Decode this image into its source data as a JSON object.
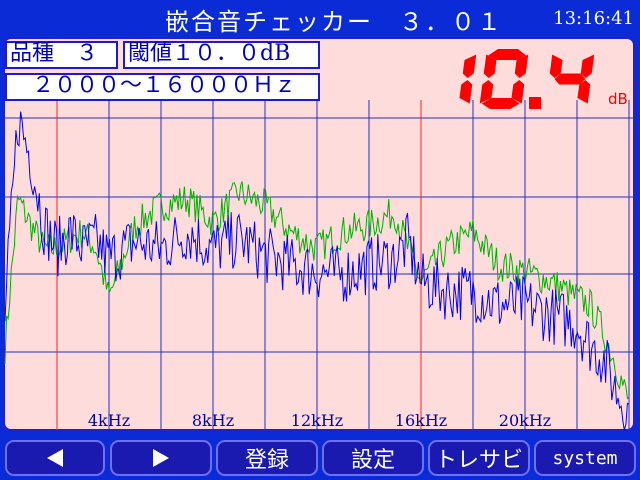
{
  "app": {
    "title": "嵌合音チェッカー　３．０１",
    "clock": "13:16:41"
  },
  "info": {
    "product": "品種　３",
    "threshold": "閾値１０．０dB",
    "band": "　２０００～１６０００Ｈｚ"
  },
  "result": {
    "value": "10.4",
    "unit": "dB",
    "color": "#ff0000"
  },
  "buttons": {
    "prev_icon": "triangle-left-icon",
    "next_icon": "triangle-right-icon",
    "register": "登録",
    "settings": "設定",
    "trace": "トレサビ",
    "system": "system"
  },
  "chart_data": {
    "type": "line",
    "x_tick_labels": [
      "4kHz",
      "8kHz",
      "12kHz",
      "16kHz",
      "20kHz"
    ],
    "x_range_khz": [
      0,
      24
    ],
    "threshold_band_khz": [
      2,
      16
    ],
    "grid": true,
    "series": [
      {
        "color": "#0000ff",
        "x_khz": [
          0,
          0.5,
          1,
          1.5,
          2,
          2.5,
          3,
          3.5,
          4,
          5,
          6,
          7,
          8,
          9,
          10,
          11,
          12,
          13,
          14,
          15,
          15.5,
          16,
          17,
          18,
          19,
          20,
          21,
          22,
          22.5,
          23,
          23.5,
          24
        ],
        "level": [
          0.35,
          0.95,
          0.82,
          0.62,
          0.55,
          0.6,
          0.55,
          0.57,
          0.52,
          0.57,
          0.55,
          0.6,
          0.55,
          0.58,
          0.53,
          0.5,
          0.48,
          0.47,
          0.5,
          0.52,
          0.57,
          0.45,
          0.42,
          0.42,
          0.38,
          0.38,
          0.35,
          0.32,
          0.26,
          0.22,
          0.12,
          0.05
        ]
      },
      {
        "color": "#00b000",
        "x_khz": [
          0,
          0.5,
          1,
          1.5,
          2,
          2.5,
          3,
          3.5,
          4,
          5,
          6,
          7,
          8,
          9,
          10,
          11,
          12,
          13,
          14,
          15,
          15.5,
          16,
          17,
          18,
          19,
          20,
          21,
          22,
          22.5,
          23,
          23.5,
          24
        ],
        "level": [
          0.25,
          0.7,
          0.62,
          0.55,
          0.55,
          0.58,
          0.6,
          0.55,
          0.4,
          0.62,
          0.68,
          0.7,
          0.63,
          0.72,
          0.68,
          0.6,
          0.55,
          0.6,
          0.62,
          0.66,
          0.55,
          0.45,
          0.55,
          0.6,
          0.5,
          0.48,
          0.45,
          0.4,
          0.38,
          0.3,
          0.2,
          0.08
        ]
      }
    ]
  }
}
